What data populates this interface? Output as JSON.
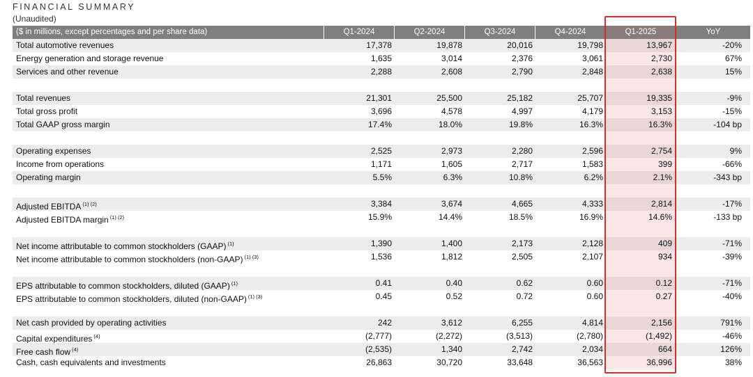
{
  "title": "FINANCIAL SUMMARY",
  "subtitle": "(Unaudited)",
  "table": {
    "header_label": "($ in millions, except percentages and per share data)",
    "columns": [
      "Q1-2024",
      "Q2-2024",
      "Q3-2024",
      "Q4-2024",
      "Q1-2025",
      "YoY"
    ],
    "highlighted_column": "Q1-2025",
    "highlight_color": "#d32f2f",
    "groups": [
      {
        "rows": [
          {
            "label": "Total automotive revenues",
            "footnote": "",
            "values": [
              "17,378",
              "19,878",
              "20,016",
              "19,798",
              "13,967",
              "-20%"
            ]
          },
          {
            "label": "Energy generation and storage revenue",
            "footnote": "",
            "values": [
              "1,635",
              "3,014",
              "2,376",
              "3,061",
              "2,730",
              "67%"
            ]
          },
          {
            "label": "Services and other revenue",
            "footnote": "",
            "values": [
              "2,288",
              "2,608",
              "2,790",
              "2,848",
              "2,638",
              "15%"
            ]
          }
        ]
      },
      {
        "rows": [
          {
            "label": "Total revenues",
            "footnote": "",
            "values": [
              "21,301",
              "25,500",
              "25,182",
              "25,707",
              "19,335",
              "-9%"
            ]
          },
          {
            "label": "Total gross profit",
            "footnote": "",
            "values": [
              "3,696",
              "4,578",
              "4,997",
              "4,179",
              "3,153",
              "-15%"
            ]
          },
          {
            "label": "Total GAAP gross margin",
            "footnote": "",
            "values": [
              "17.4%",
              "18.0%",
              "19.8%",
              "16.3%",
              "16.3%",
              "-104 bp"
            ]
          }
        ]
      },
      {
        "rows": [
          {
            "label": "Operating expenses",
            "footnote": "",
            "values": [
              "2,525",
              "2,973",
              "2,280",
              "2,596",
              "2,754",
              "9%"
            ]
          },
          {
            "label": "Income from operations",
            "footnote": "",
            "values": [
              "1,171",
              "1,605",
              "2,717",
              "1,583",
              "399",
              "-66%"
            ]
          },
          {
            "label": "Operating margin",
            "footnote": "",
            "values": [
              "5.5%",
              "6.3%",
              "10.8%",
              "6.2%",
              "2.1%",
              "-343 bp"
            ]
          }
        ]
      },
      {
        "rows": [
          {
            "label": "Adjusted EBITDA",
            "footnote": "(1) (2)",
            "values": [
              "3,384",
              "3,674",
              "4,665",
              "4,333",
              "2,814",
              "-17%"
            ]
          },
          {
            "label": "Adjusted EBITDA margin",
            "footnote": "(1) (2)",
            "values": [
              "15.9%",
              "14.4%",
              "18.5%",
              "16.9%",
              "14.6%",
              "-133 bp"
            ]
          }
        ]
      },
      {
        "rows": [
          {
            "label": "Net income attributable to common stockholders (GAAP)",
            "footnote": "(1)",
            "values": [
              "1,390",
              "1,400",
              "2,173",
              "2,128",
              "409",
              "-71%"
            ]
          },
          {
            "label": "Net income attributable to common stockholders (non-GAAP)",
            "footnote": "(1) (3)",
            "values": [
              "1,536",
              "1,812",
              "2,505",
              "2,107",
              "934",
              "-39%"
            ]
          }
        ]
      },
      {
        "rows": [
          {
            "label": "EPS attributable to common stockholders, diluted (GAAP)",
            "footnote": "(1)",
            "values": [
              "0.41",
              "0.40",
              "0.62",
              "0.60",
              "0.12",
              "-71%"
            ]
          },
          {
            "label": "EPS attributable to common stockholders, diluted (non-GAAP)",
            "footnote": "(1) (3)",
            "values": [
              "0.45",
              "0.52",
              "0.72",
              "0.60",
              "0.27",
              "-40%"
            ]
          }
        ]
      },
      {
        "rows": [
          {
            "label": "Net cash provided by operating activities",
            "footnote": "",
            "values": [
              "242",
              "3,612",
              "6,255",
              "4,814",
              "2,156",
              "791%"
            ]
          },
          {
            "label": "Capital expenditures",
            "footnote": "(4)",
            "values": [
              "(2,777)",
              "(2,272)",
              "(3,513)",
              "(2,780)",
              "(1,492)",
              "-46%"
            ]
          },
          {
            "label": "Free cash flow",
            "footnote": "(4)",
            "values": [
              "(2,535)",
              "1,340",
              "2,742",
              "2,034",
              "664",
              "126%"
            ]
          },
          {
            "label": "Cash, cash equivalents and investments",
            "footnote": "",
            "values": [
              "26,863",
              "30,720",
              "33,648",
              "36,563",
              "36,996",
              "38%"
            ]
          }
        ]
      }
    ]
  }
}
